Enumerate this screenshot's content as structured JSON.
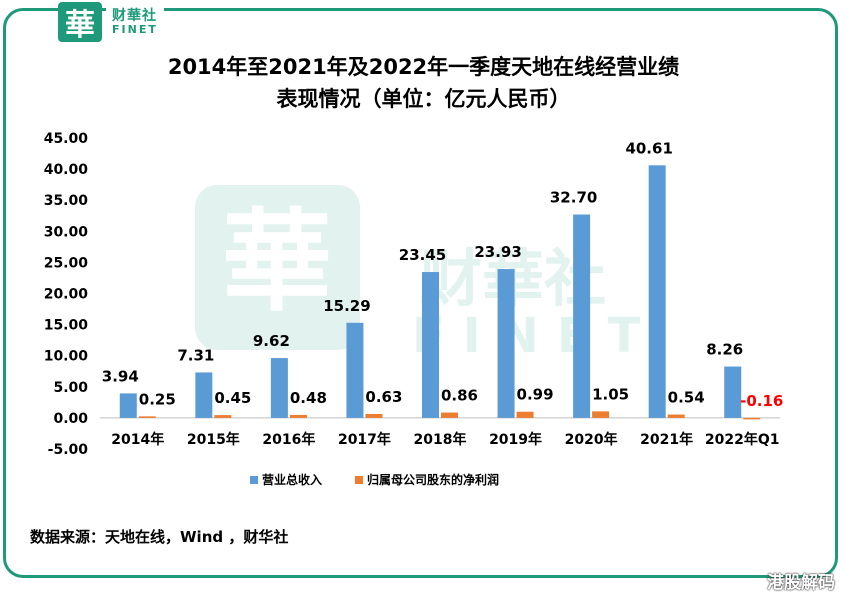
{
  "brand": {
    "logo_char": "華",
    "name_cn": "财華社",
    "name_en": "FINET"
  },
  "titles": {
    "line1": "2014年至2021年及2022年一季度天地在线经营业绩",
    "line2": "表现情况（单位：亿元人民币）"
  },
  "source": "数据来源：天地在线，Wind ，财华社",
  "corner_watermark": "港股解码",
  "colors": {
    "frame": "#1e9a7a",
    "revenue": "#5b9bd5",
    "profit": "#ed7d31",
    "negative_label": "#ff0000"
  },
  "chart_data": {
    "type": "bar",
    "categories": [
      "2014年",
      "2015年",
      "2016年",
      "2017年",
      "2018年",
      "2019年",
      "2020年",
      "2021年",
      "2022年Q1"
    ],
    "series": [
      {
        "name": "营业总收入",
        "values": [
          3.94,
          7.31,
          9.62,
          15.29,
          23.45,
          23.93,
          32.7,
          40.61,
          8.26
        ],
        "labels": [
          "3.94",
          "7.31",
          "9.62",
          "15.29",
          "23.45",
          "23.93",
          "32.70",
          "40.61",
          "8.26"
        ]
      },
      {
        "name": "归属母公司股东的净利润",
        "values": [
          0.25,
          0.45,
          0.48,
          0.63,
          0.86,
          0.99,
          1.05,
          0.54,
          -0.16
        ],
        "labels": [
          "0.25",
          "0.45",
          "0.48",
          "0.63",
          "0.86",
          "0.99",
          "1.05",
          "0.54",
          "-0.16"
        ]
      }
    ],
    "ylim": [
      -5,
      45
    ],
    "yticks": [
      "45.00",
      "40.00",
      "35.00",
      "30.00",
      "25.00",
      "20.00",
      "15.00",
      "10.00",
      "5.00",
      "0.00",
      "-5.00"
    ],
    "ytick_values": [
      45,
      40,
      35,
      30,
      25,
      20,
      15,
      10,
      5,
      0,
      -5
    ],
    "legend_position": "bottom",
    "grid": false
  }
}
